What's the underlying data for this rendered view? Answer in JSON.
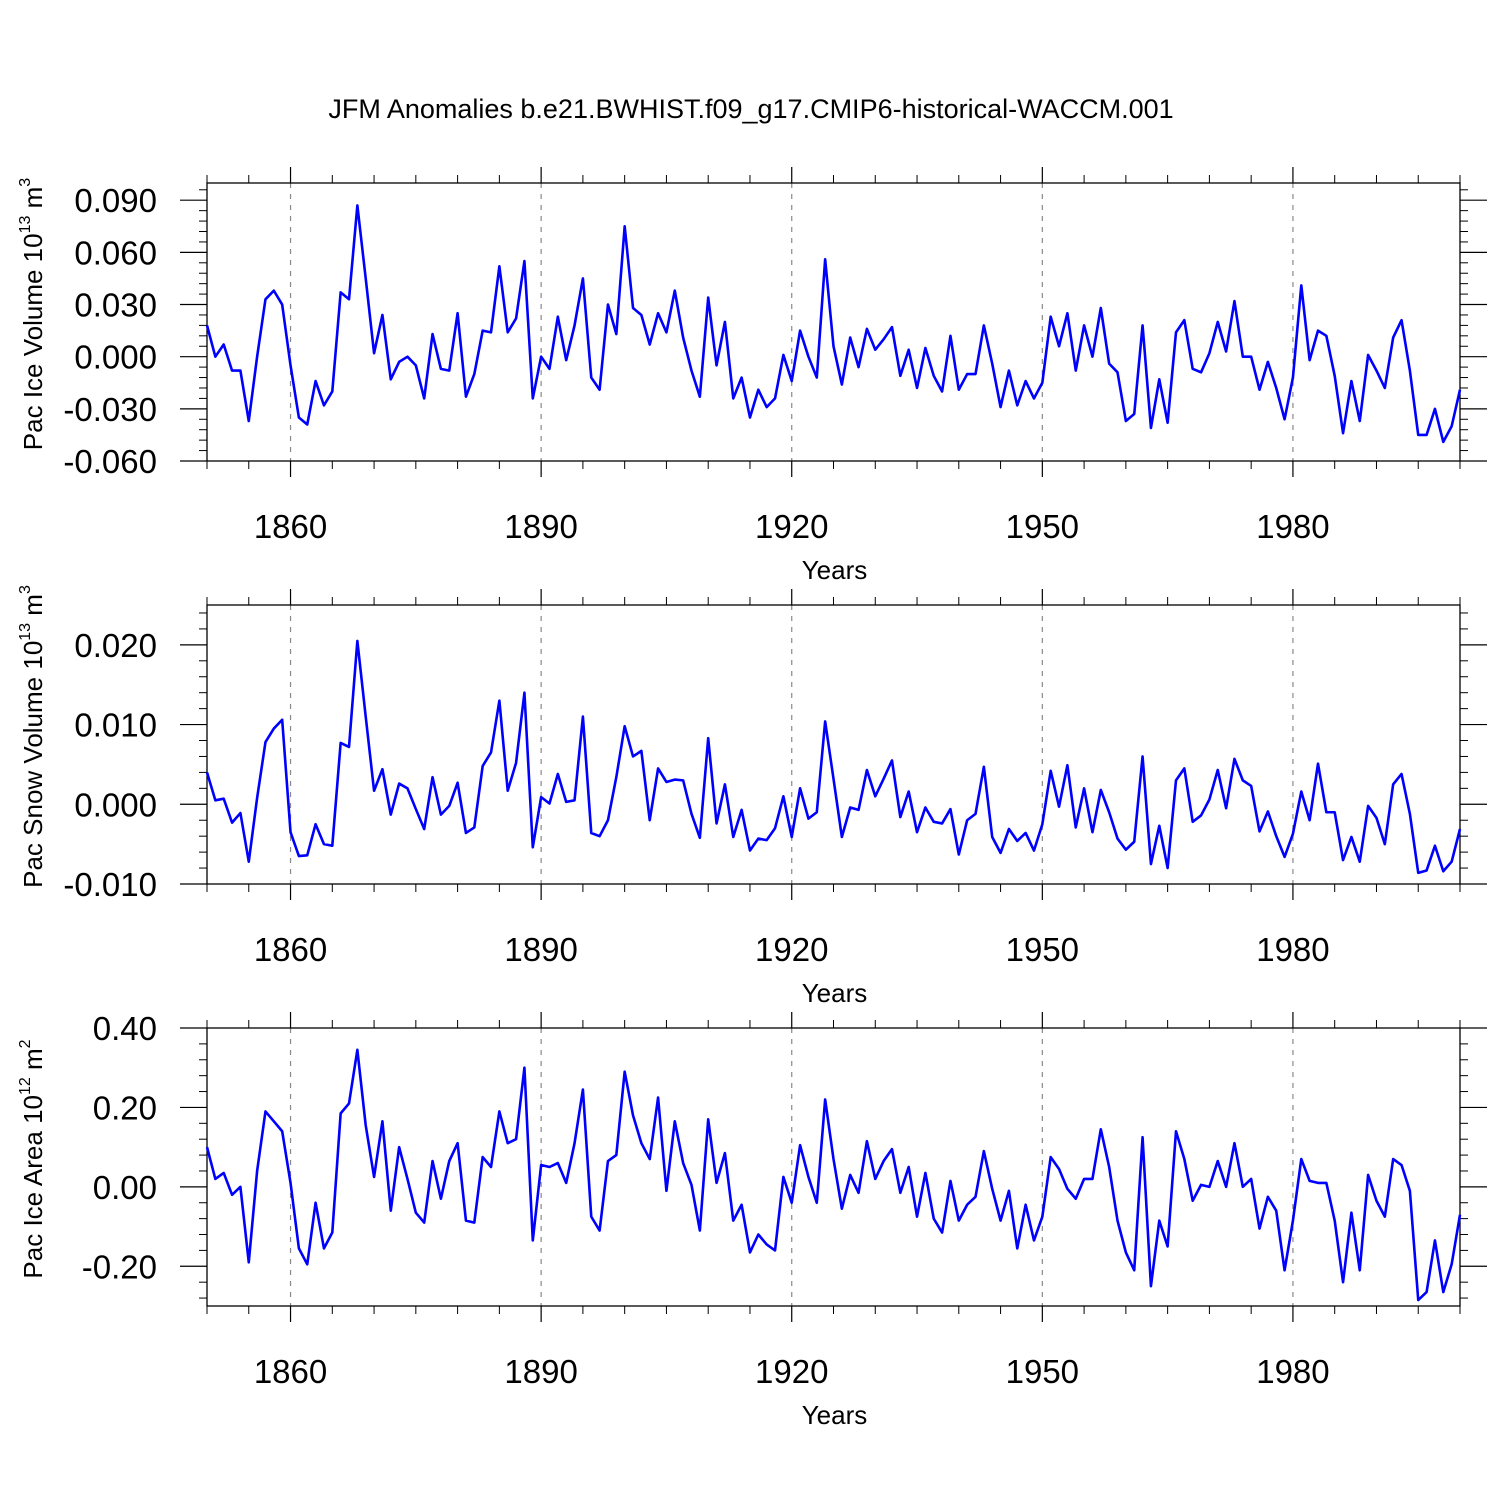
{
  "title": "JFM Anomalies b.e21.BWHIST.f09_g17.CMIP6-historical-WACCM.001",
  "chart_data": [
    {
      "type": "line",
      "title": "JFM Anomalies b.e21.BWHIST.f09_g17.CMIP6-historical-WACCM.001",
      "xlabel": "Years",
      "ylabel": {
        "prefix": "Pac Ice Volume 10",
        "exp1": "13",
        "mid": " m",
        "exp2": "3"
      },
      "xlim": [
        1850,
        2000
      ],
      "ylim": [
        -0.06,
        0.0999
      ],
      "xticks": [
        1860,
        1890,
        1920,
        1950,
        1980
      ],
      "xtick_labels": [
        "1860",
        "1890",
        "1920",
        "1950",
        "1980"
      ],
      "yticks": [
        -0.06,
        -0.03,
        0.0,
        0.03,
        0.06,
        0.09
      ],
      "ytick_labels": [
        "-0.060",
        "-0.030",
        "0.000",
        "0.030",
        "0.060",
        "0.090"
      ],
      "grid": "dashed vertical at major x ticks",
      "color": "#0000ff",
      "series": [
        {
          "name": "Pac Ice Volume",
          "x_start": 1850,
          "values": [
            0.018,
            0.0,
            0.007,
            -0.008,
            -0.008,
            -0.037,
            0.0,
            0.033,
            0.038,
            0.03,
            -0.005,
            -0.035,
            -0.039,
            -0.014,
            -0.028,
            -0.02,
            0.037,
            0.033,
            0.087,
            0.045,
            0.002,
            0.024,
            -0.013,
            -0.003,
            0.0,
            -0.005,
            -0.024,
            0.013,
            -0.007,
            -0.008,
            0.025,
            -0.023,
            -0.01,
            0.015,
            0.014,
            0.052,
            0.014,
            0.022,
            0.055,
            -0.024,
            0.0,
            -0.007,
            0.023,
            -0.002,
            0.018,
            0.045,
            -0.012,
            -0.019,
            0.03,
            0.013,
            0.075,
            0.028,
            0.024,
            0.007,
            0.025,
            0.014,
            0.038,
            0.011,
            -0.008,
            -0.023,
            0.034,
            -0.005,
            0.02,
            -0.024,
            -0.012,
            -0.035,
            -0.019,
            -0.029,
            -0.024,
            0.001,
            -0.014,
            0.015,
            0.0,
            -0.012,
            0.056,
            0.006,
            -0.016,
            0.011,
            -0.006,
            0.016,
            0.004,
            0.01,
            0.017,
            -0.011,
            0.004,
            -0.018,
            0.005,
            -0.011,
            -0.02,
            0.012,
            -0.019,
            -0.01,
            -0.01,
            0.018,
            -0.004,
            -0.029,
            -0.008,
            -0.028,
            -0.014,
            -0.024,
            -0.015,
            0.023,
            0.006,
            0.025,
            -0.008,
            0.018,
            0.0,
            0.028,
            -0.004,
            -0.009,
            -0.037,
            -0.033,
            0.018,
            -0.041,
            -0.013,
            -0.038,
            0.014,
            0.021,
            -0.007,
            -0.009,
            0.002,
            0.02,
            0.003,
            0.032,
            0.0,
            0.0,
            -0.019,
            -0.003,
            -0.018,
            -0.036,
            -0.012,
            0.041,
            -0.002,
            0.015,
            0.012,
            -0.011,
            -0.044,
            -0.014,
            -0.037,
            0.001,
            -0.008,
            -0.018,
            0.011,
            0.021,
            -0.008,
            -0.045,
            -0.045,
            -0.03,
            -0.049,
            -0.04,
            -0.019
          ]
        }
      ]
    },
    {
      "type": "line",
      "xlabel": "Years",
      "ylabel": {
        "prefix": "Pac Snow Volume 10",
        "exp1": "13",
        "mid": " m",
        "exp2": "3"
      },
      "xlim": [
        1850,
        2000
      ],
      "ylim": [
        -0.01,
        0.025
      ],
      "xticks": [
        1860,
        1890,
        1920,
        1950,
        1980
      ],
      "xtick_labels": [
        "1860",
        "1890",
        "1920",
        "1950",
        "1980"
      ],
      "yticks": [
        -0.01,
        0.0,
        0.01,
        0.02
      ],
      "ytick_labels": [
        "-0.010",
        "0.000",
        "0.010",
        "0.020"
      ],
      "grid": "dashed vertical at major x ticks",
      "color": "#0000ff",
      "series": [
        {
          "name": "Pac Snow Volume",
          "x_start": 1850,
          "values": [
            0.004,
            0.0005,
            0.0007,
            -0.0023,
            -0.0011,
            -0.0072,
            0.0008,
            0.0078,
            0.0095,
            0.0106,
            -0.0035,
            -0.0065,
            -0.0064,
            -0.0025,
            -0.005,
            -0.0052,
            0.0077,
            0.0072,
            0.0205,
            0.011,
            0.0017,
            0.0044,
            -0.0013,
            0.0026,
            0.002,
            -0.0006,
            -0.0031,
            0.0034,
            -0.0013,
            -0.0002,
            0.0027,
            -0.0036,
            -0.0029,
            0.0048,
            0.0065,
            0.013,
            0.0017,
            0.0052,
            0.014,
            -0.0054,
            0.0009,
            0.0001,
            0.0038,
            0.0003,
            0.0005,
            0.011,
            -0.0036,
            -0.004,
            -0.002,
            0.0034,
            0.0098,
            0.006,
            0.0067,
            -0.002,
            0.0045,
            0.0028,
            0.0031,
            0.003,
            -0.0012,
            -0.0042,
            0.0083,
            -0.0024,
            0.0025,
            -0.0041,
            -0.0007,
            -0.0058,
            -0.0043,
            -0.0045,
            -0.003,
            0.001,
            -0.0041,
            0.002,
            -0.0018,
            -0.001,
            0.0104,
            0.0032,
            -0.0041,
            -0.0004,
            -0.0007,
            0.0043,
            0.001,
            0.0032,
            0.0055,
            -0.0016,
            0.0016,
            -0.0035,
            -0.0004,
            -0.0022,
            -0.0024,
            -0.0006,
            -0.0063,
            -0.002,
            -0.0012,
            0.0047,
            -0.0041,
            -0.0061,
            -0.0031,
            -0.0046,
            -0.0036,
            -0.0058,
            -0.0025,
            0.0042,
            -0.0003,
            0.0049,
            -0.0029,
            0.002,
            -0.0035,
            0.0018,
            -0.001,
            -0.0043,
            -0.0057,
            -0.0047,
            0.006,
            -0.0075,
            -0.0027,
            -0.008,
            0.003,
            0.0045,
            -0.0022,
            -0.0014,
            0.0006,
            0.0043,
            -0.0005,
            0.0057,
            0.003,
            0.0023,
            -0.0034,
            -0.0009,
            -0.004,
            -0.0066,
            -0.0037,
            0.0016,
            -0.002,
            0.0051,
            -0.001,
            -0.001,
            -0.007,
            -0.0041,
            -0.0072,
            -0.0002,
            -0.0017,
            -0.005,
            0.0025,
            0.0038,
            -0.0012,
            -0.0086,
            -0.0083,
            -0.0052,
            -0.0084,
            -0.0072,
            -0.0031
          ]
        }
      ]
    },
    {
      "type": "line",
      "xlabel": "Years",
      "ylabel": {
        "prefix": "Pac Ice Area 10",
        "exp1": "12",
        "mid": " m",
        "exp2": "2"
      },
      "xlim": [
        1850,
        2000
      ],
      "ylim": [
        -0.3,
        0.4
      ],
      "xticks": [
        1860,
        1890,
        1920,
        1950,
        1980
      ],
      "xtick_labels": [
        "1860",
        "1890",
        "1920",
        "1950",
        "1980"
      ],
      "yticks": [
        -0.2,
        0.0,
        0.2,
        0.4
      ],
      "ytick_labels": [
        "-0.20",
        "0.00",
        "0.20",
        "0.40"
      ],
      "grid": "dashed vertical at major x ticks",
      "color": "#0000ff",
      "series": [
        {
          "name": "Pac Ice Area",
          "x_start": 1850,
          "values": [
            0.1,
            0.02,
            0.035,
            -0.02,
            0.0,
            -0.19,
            0.04,
            0.19,
            0.165,
            0.14,
            0.01,
            -0.155,
            -0.195,
            -0.04,
            -0.155,
            -0.115,
            0.185,
            0.21,
            0.345,
            0.155,
            0.025,
            0.165,
            -0.06,
            0.1,
            0.02,
            -0.065,
            -0.09,
            0.065,
            -0.03,
            0.065,
            0.11,
            -0.085,
            -0.09,
            0.075,
            0.05,
            0.19,
            0.11,
            0.12,
            0.3,
            -0.135,
            0.055,
            0.05,
            0.06,
            0.01,
            0.11,
            0.245,
            -0.075,
            -0.11,
            0.065,
            0.08,
            0.29,
            0.18,
            0.11,
            0.07,
            0.225,
            -0.01,
            0.165,
            0.06,
            0.005,
            -0.11,
            0.17,
            0.01,
            0.085,
            -0.085,
            -0.045,
            -0.165,
            -0.12,
            -0.145,
            -0.16,
            0.025,
            -0.04,
            0.105,
            0.025,
            -0.04,
            0.22,
            0.07,
            -0.055,
            0.03,
            -0.015,
            0.115,
            0.02,
            0.065,
            0.095,
            -0.015,
            0.05,
            -0.075,
            0.035,
            -0.08,
            -0.115,
            0.015,
            -0.085,
            -0.045,
            -0.025,
            0.09,
            -0.005,
            -0.085,
            -0.01,
            -0.155,
            -0.045,
            -0.135,
            -0.075,
            0.075,
            0.045,
            -0.005,
            -0.03,
            0.02,
            0.02,
            0.145,
            0.05,
            -0.085,
            -0.165,
            -0.21,
            0.125,
            -0.25,
            -0.085,
            -0.15,
            0.14,
            0.07,
            -0.035,
            0.005,
            0.0,
            0.065,
            0.0,
            0.11,
            0.0,
            0.02,
            -0.105,
            -0.025,
            -0.06,
            -0.21,
            -0.085,
            0.07,
            0.015,
            0.01,
            0.01,
            -0.085,
            -0.24,
            -0.065,
            -0.21,
            0.03,
            -0.035,
            -0.075,
            0.07,
            0.055,
            -0.01,
            -0.285,
            -0.265,
            -0.135,
            -0.265,
            -0.195,
            -0.07
          ]
        }
      ]
    }
  ]
}
